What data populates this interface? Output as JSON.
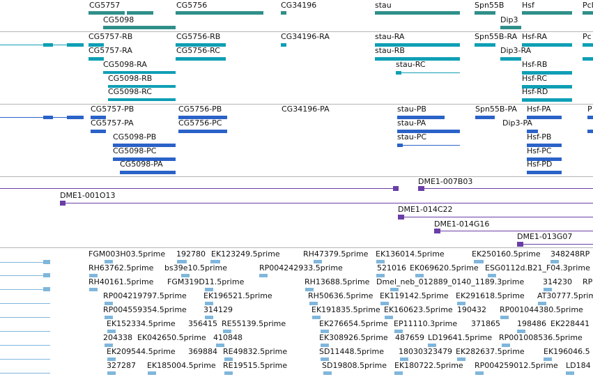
{
  "colors": {
    "genes": "#2f8f89",
    "transcripts_a": "#0f9fb5",
    "transcripts_b": "#2a62c8",
    "probes": "#6a3ea6",
    "ests": "#7fb6dc",
    "divider": "#b4b4b4"
  },
  "genes": [
    "CG5757",
    "CG5098",
    "CG5756",
    "CG34196",
    "stau",
    "Spn55B",
    "Dip3",
    "Hsf",
    "PcI"
  ],
  "transcripts_a": [
    "CG5757-RB",
    "CG5757-RA",
    "CG5098-RA",
    "CG5098-RB",
    "CG5098-RC",
    "CG5756-RB",
    "CG5756-RC",
    "CG34196-RA",
    "stau-RA",
    "stau-RB",
    "stau-RC",
    "Spn55B-RA",
    "Hsf-RA",
    "Dip3-RA",
    "Hsf-RB",
    "Hsf-RC",
    "Hsf-RD",
    "Pc"
  ],
  "transcripts_b": [
    "CG5757-PB",
    "CG5757-PA",
    "CG5098-PB",
    "CG5098-PC",
    "CG5098-PA",
    "CG5756-PB",
    "CG5756-PC",
    "CG34196-PA",
    "stau-PB",
    "stau-PA",
    "stau-PC",
    "Spn55B-PA",
    "Hsf-PA",
    "Dip3-PA",
    "Hsf-PB",
    "Hsf-PC",
    "Hsf-PD",
    "P"
  ],
  "probes": [
    "DME1-007B03",
    "DME1-001O13",
    "DME1-014C22",
    "DME1-014G16",
    "DME1-013G07"
  ],
  "ests": [
    "FGM003H03.5prime",
    "192780",
    "EK123249.5prime",
    "RH47379.5prime",
    "EK136014.5prime",
    "EK250160.5prime",
    "348248RP",
    "RH63762.5prime",
    "bs39e10.5prime",
    "RP004242933.5prime",
    "521016",
    "EK069620.5prime",
    "ESG0112d.B21_F04.3prime",
    "RH40161.5prime",
    "FGM319D11.5prime",
    "RH13688.5prime",
    "Dmel_neb_012889_0140_1189.3prime",
    "314230",
    "RP",
    "RP004219797.5prime",
    "EK196521.5prime",
    "RH50636.5prime",
    "EK119142.5prime",
    "EK291618.5prime",
    "AT30777.5prime",
    "RP004559354.5prime",
    "314129",
    "EK191835.5prime",
    "EK160623.5prime",
    "190432",
    "RP001044380.5prime",
    "EK152334.5prime",
    "356415",
    "RE55139.5prime",
    "EK276654.5prime",
    "EP11110.3prime",
    "371865",
    "198486",
    "EK228441",
    "204338",
    "EK042650.5prime",
    "410848",
    "EK308926.5prime",
    "487659",
    "LD19641.5prime",
    "RP001008536.5prime",
    "EK209544.5prime",
    "369884",
    "RE49832.5prime",
    "SD11448.5prime",
    "18030323479",
    "EK282637.5prime",
    "EK196046.5",
    "327287",
    "EK185004.5prime",
    "RE19515.5prime",
    "SD19808.5prime",
    "EK180722.5prime",
    "RP004259012.5prime",
    "LD184"
  ]
}
